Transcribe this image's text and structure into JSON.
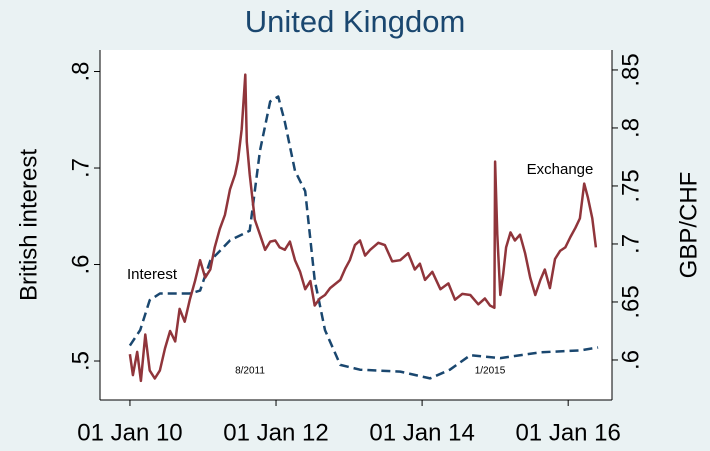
{
  "chart_data": {
    "type": "line",
    "title": "United Kingdom",
    "ylabel": "British interest",
    "y2label": "GBP/CHF",
    "annotations": [
      "Interest",
      "Exchange",
      "8/2011",
      "1/2015"
    ],
    "xlim": [
      2009.59,
      2016.6
    ],
    "xticks": [
      {
        "value": 2010,
        "label": "01 Jan 10"
      },
      {
        "value": 2012,
        "label": "01 Jan 12"
      },
      {
        "value": 2014,
        "label": "01 Jan 14"
      },
      {
        "value": 2016,
        "label": "01 Jan 16"
      }
    ],
    "ylim": [
      0.4596,
      0.8223
    ],
    "yticks": [
      {
        "value": 0.5,
        "label": ".5"
      },
      {
        "value": 0.6,
        "label": ".6"
      },
      {
        "value": 0.7,
        "label": ".7"
      },
      {
        "value": 0.8,
        "label": ".8"
      }
    ],
    "y2lim": [
      0.5655,
      0.8672
    ],
    "y2ticks": [
      {
        "value": 0.6,
        "label": ".6"
      },
      {
        "value": 0.65,
        "label": ".65"
      },
      {
        "value": 0.7,
        "label": ".7"
      },
      {
        "value": 0.75,
        "label": ".75"
      },
      {
        "value": 0.8,
        "label": ".8"
      },
      {
        "value": 0.85,
        "label": ".85"
      }
    ],
    "series": [
      {
        "name": "Interest",
        "color": "#1a476f",
        "dashed": true,
        "axis": "y",
        "x": [
          2010.0,
          2010.14,
          2010.27,
          2010.41,
          2010.62,
          2010.82,
          2010.96,
          2011.1,
          2011.23,
          2011.37,
          2011.64,
          2011.78,
          2011.92,
          2012.03,
          2012.12,
          2012.26,
          2012.4,
          2012.53,
          2012.67,
          2012.88,
          2013.15,
          2013.7,
          2014.11,
          2014.38,
          2014.66,
          2015.07,
          2015.62,
          2016.16,
          2016.41
        ],
        "values": [
          0.516,
          0.532,
          0.563,
          0.57,
          0.57,
          0.57,
          0.573,
          0.604,
          0.614,
          0.625,
          0.635,
          0.718,
          0.769,
          0.774,
          0.748,
          0.697,
          0.676,
          0.584,
          0.532,
          0.496,
          0.491,
          0.489,
          0.482,
          0.491,
          0.506,
          0.503,
          0.509,
          0.511,
          0.514
        ]
      },
      {
        "name": "Exchange",
        "color": "#90353b",
        "dashed": false,
        "axis": "y2",
        "x": [
          2010.0,
          2010.04,
          2010.1,
          2010.15,
          2010.21,
          2010.27,
          2010.34,
          2010.41,
          2010.48,
          2010.55,
          2010.62,
          2010.68,
          2010.75,
          2010.82,
          2010.89,
          2010.96,
          2011.03,
          2011.1,
          2011.16,
          2011.23,
          2011.3,
          2011.37,
          2011.44,
          2011.48,
          2011.53,
          2011.58,
          2011.6,
          2011.64,
          2011.71,
          2011.78,
          2011.85,
          2011.92,
          2011.99,
          2012.05,
          2012.12,
          2012.19,
          2012.26,
          2012.33,
          2012.4,
          2012.47,
          2012.53,
          2012.6,
          2012.67,
          2012.74,
          2012.88,
          2012.95,
          2013.01,
          2013.08,
          2013.15,
          2013.22,
          2013.29,
          2013.4,
          2013.49,
          2013.59,
          2013.7,
          2013.81,
          2013.9,
          2013.97,
          2014.04,
          2014.14,
          2014.25,
          2014.36,
          2014.45,
          2014.55,
          2014.66,
          2014.77,
          2014.86,
          2014.93,
          2014.99,
          2015.0,
          2015.03,
          2015.07,
          2015.11,
          2015.15,
          2015.21,
          2015.27,
          2015.34,
          2015.41,
          2015.48,
          2015.55,
          2015.62,
          2015.68,
          2015.75,
          2015.82,
          2015.89,
          2015.96,
          2016.03,
          2016.1,
          2016.16,
          2016.22,
          2016.27,
          2016.33,
          2016.38
        ],
        "values": [
          0.605,
          0.587,
          0.607,
          0.582,
          0.622,
          0.591,
          0.584,
          0.591,
          0.61,
          0.625,
          0.616,
          0.644,
          0.633,
          0.652,
          0.668,
          0.686,
          0.671,
          0.678,
          0.697,
          0.713,
          0.725,
          0.747,
          0.76,
          0.772,
          0.799,
          0.846,
          0.788,
          0.76,
          0.721,
          0.708,
          0.695,
          0.702,
          0.703,
          0.697,
          0.695,
          0.702,
          0.686,
          0.676,
          0.661,
          0.668,
          0.647,
          0.653,
          0.656,
          0.662,
          0.669,
          0.679,
          0.686,
          0.699,
          0.703,
          0.69,
          0.695,
          0.701,
          0.699,
          0.685,
          0.686,
          0.692,
          0.678,
          0.683,
          0.669,
          0.676,
          0.661,
          0.666,
          0.652,
          0.657,
          0.656,
          0.648,
          0.653,
          0.647,
          0.645,
          0.771,
          0.708,
          0.656,
          0.674,
          0.697,
          0.71,
          0.703,
          0.708,
          0.692,
          0.671,
          0.656,
          0.669,
          0.678,
          0.662,
          0.687,
          0.694,
          0.697,
          0.706,
          0.714,
          0.722,
          0.752,
          0.74,
          0.722,
          0.697
        ]
      }
    ]
  }
}
